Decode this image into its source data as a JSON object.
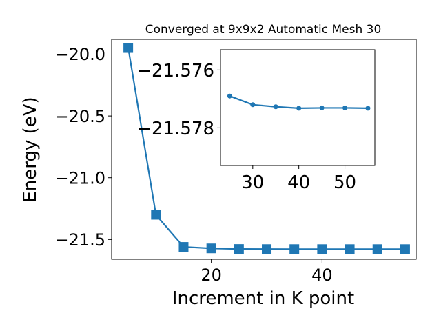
{
  "chart_data": [
    {
      "type": "line",
      "title": "Converged at 9x9x2 Automatic Mesh 30",
      "xlabel": "Increment in K point",
      "ylabel": "Energy (eV)",
      "xlim": [
        2,
        57
      ],
      "ylim": [
        -21.66,
        -19.88
      ],
      "xticks": [
        20,
        40
      ],
      "yticks": [
        -20.0,
        -20.5,
        -21.0,
        -21.5
      ],
      "ytick_labels": [
        "−20.0",
        "−20.5",
        "−21.0",
        "−21.5"
      ],
      "marker": "square",
      "color": "#1f77b4",
      "series": [
        {
          "x": [
            5,
            10,
            15,
            20,
            25,
            30,
            35,
            40,
            45,
            50,
            55
          ],
          "values": [
            -19.95,
            -21.3,
            -21.56,
            -21.572,
            -21.577,
            -21.5778,
            -21.5779,
            -21.578,
            -21.578,
            -21.578,
            -21.578
          ]
        }
      ]
    },
    {
      "type": "line",
      "inset": true,
      "xlim": [
        23,
        56.5
      ],
      "ylim": [
        -21.5793,
        -21.5753
      ],
      "xticks": [
        30,
        40,
        50
      ],
      "yticks": [
        -21.578,
        -21.576
      ],
      "ytick_labels": [
        "−21.578",
        "−21.576"
      ],
      "marker": "circle",
      "color": "#1f77b4",
      "series": [
        {
          "x": [
            25,
            30,
            35,
            40,
            45,
            50,
            55
          ],
          "values": [
            -21.5769,
            -21.5772,
            -21.57727,
            -21.57732,
            -21.57731,
            -21.57731,
            -21.57732
          ]
        }
      ]
    }
  ]
}
